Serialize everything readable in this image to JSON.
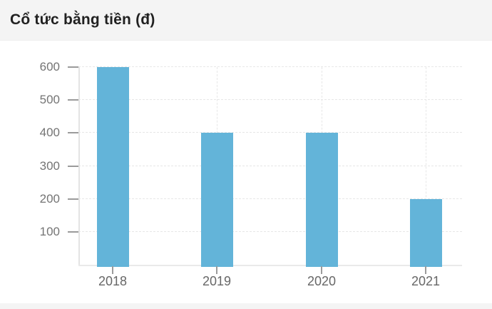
{
  "header": {
    "title": "Cổ tức bằng tiền (đ)"
  },
  "chart_data": {
    "type": "bar",
    "title": "Cổ tức bằng tiền (đ)",
    "categories": [
      "2018",
      "2019",
      "2020",
      "2021"
    ],
    "values": [
      600,
      400,
      400,
      200
    ],
    "xlabel": "",
    "ylabel": "",
    "ylim": [
      0,
      600
    ],
    "y_ticks": [
      100,
      200,
      300,
      400,
      500,
      600
    ],
    "grid": "dashed, horizontal at each y tick and vertical at each category center",
    "legend_position": "none",
    "bar_color": "#63b4d9"
  },
  "colors": {
    "header_bg": "#f4f4f4",
    "title_text": "#212121",
    "chart_bg": "#ffffff",
    "bar": "#63b4d9",
    "axis_line": "#e4e4e4",
    "gridline": "#e7e7e7",
    "tick": "#9b9b9b",
    "y_label_text": "#747474",
    "x_label_text": "#676767"
  }
}
